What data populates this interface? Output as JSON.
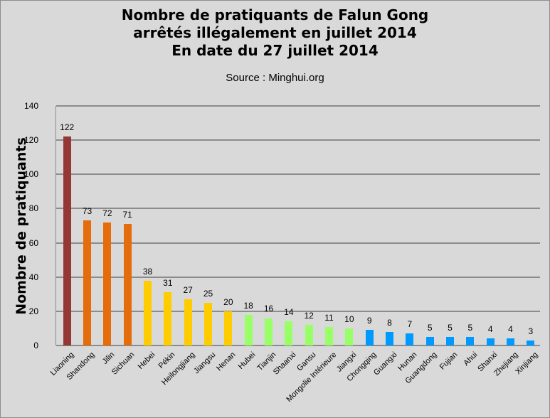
{
  "chart_data": {
    "type": "bar",
    "title": [
      "Nombre de pratiquants de Falun Gong",
      "arrêtés illégalement en juillet 2014",
      "En date du 27 juillet 2014"
    ],
    "subtitle": "Source : Minghui.org",
    "xlabel": "",
    "ylabel": "Nombre de pratiquants",
    "ylim": [
      0,
      140
    ],
    "yticks": [
      0,
      20,
      40,
      60,
      80,
      100,
      120,
      140
    ],
    "grid": true,
    "legend": "none",
    "categories": [
      "Liaoning",
      "Shandong",
      "Jilin",
      "Sichuan",
      "Hebei",
      "Pékin",
      "Heilongjiang",
      "Jiangsu",
      "Henan",
      "Hubei",
      "Tianjin",
      "Shaanxi",
      "Gansu",
      "Mongolie Intérieure",
      "Jiangxi",
      "Chongqing",
      "Guangxi",
      "Hunan",
      "Guangdong",
      "Fujian",
      "Ahui",
      "Shanxi",
      "Zhejiang",
      "Xinjiang"
    ],
    "values": [
      122,
      73,
      72,
      71,
      38,
      31,
      27,
      25,
      20,
      18,
      16,
      14,
      12,
      11,
      10,
      9,
      8,
      7,
      5,
      5,
      5,
      4,
      4,
      3
    ],
    "bar_colors": [
      "#953735",
      "#e46c0a",
      "#e46c0a",
      "#e46c0a",
      "#ffcc00",
      "#ffcc00",
      "#ffcc00",
      "#ffcc00",
      "#ffcc00",
      "#99ff66",
      "#99ff66",
      "#99ff66",
      "#99ff66",
      "#99ff66",
      "#99ff66",
      "#0099ff",
      "#0099ff",
      "#0099ff",
      "#0099ff",
      "#0099ff",
      "#0099ff",
      "#0099ff",
      "#0099ff",
      "#0099ff"
    ]
  }
}
